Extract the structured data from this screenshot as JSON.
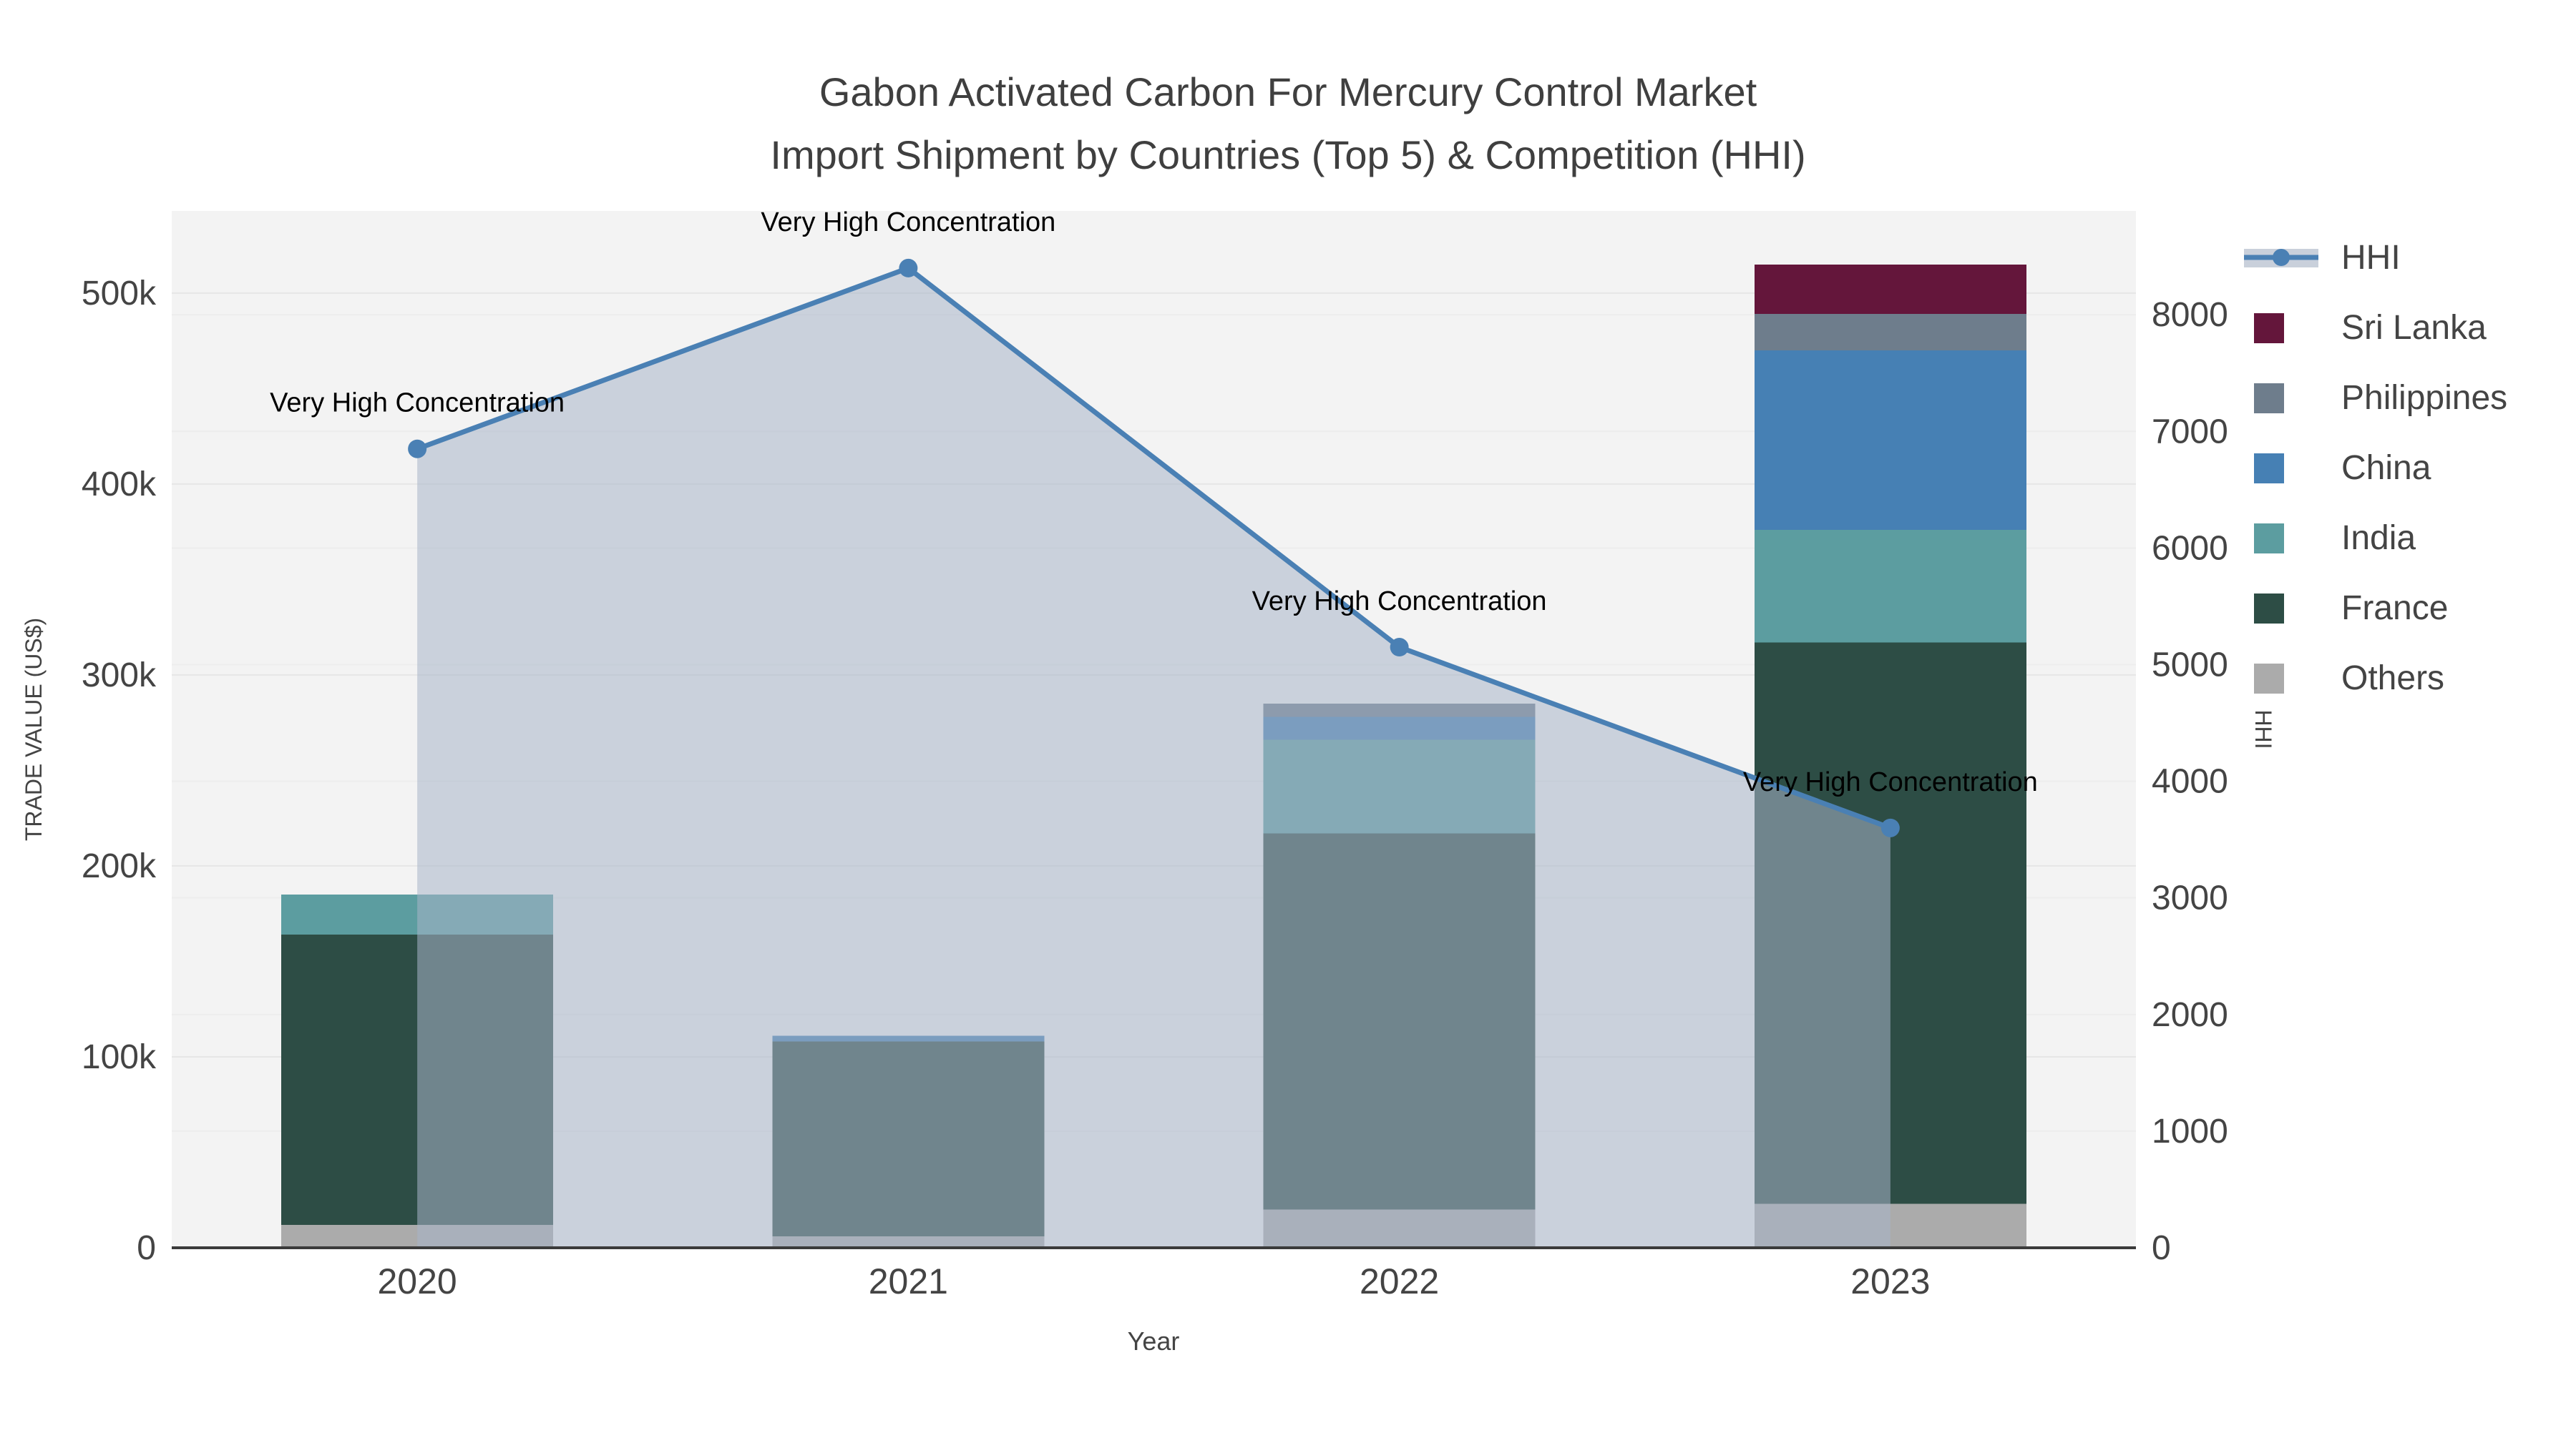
{
  "title": {
    "line1": "Gabon Activated Carbon For Mercury Control Market",
    "line2": "Import Shipment by Countries (Top 5) & Competition (HHI)"
  },
  "axes": {
    "x": {
      "title": "Year",
      "categories": [
        "2020",
        "2021",
        "2022",
        "2023"
      ]
    },
    "y_left": {
      "title": "TRADE VALUE (US$)",
      "tick_labels": [
        "0",
        "100k",
        "200k",
        "300k",
        "400k",
        "500k"
      ],
      "tick_values": [
        0,
        100000,
        200000,
        300000,
        400000,
        500000
      ],
      "max": 543000
    },
    "y_right": {
      "title": "HHI",
      "tick_labels": [
        "0",
        "1000",
        "2000",
        "3000",
        "4000",
        "5000",
        "6000",
        "7000",
        "8000"
      ],
      "tick_values": [
        0,
        1000,
        2000,
        3000,
        4000,
        5000,
        6000,
        7000,
        8000
      ],
      "max": 8890
    }
  },
  "legend": {
    "items": [
      {
        "label": "HHI",
        "type": "line",
        "color": "#4A80B4",
        "band": "#C9D0DB"
      },
      {
        "label": "Sri Lanka",
        "type": "box",
        "color": "#64163B"
      },
      {
        "label": "Philippines",
        "type": "box",
        "color": "#6E7D8C"
      },
      {
        "label": "China",
        "type": "box",
        "color": "#4680B4"
      },
      {
        "label": "India",
        "type": "box",
        "color": "#5C9DA0"
      },
      {
        "label": "France",
        "type": "box",
        "color": "#2D4D45"
      },
      {
        "label": "Others",
        "type": "box",
        "color": "#ABABAB"
      }
    ]
  },
  "annotations": [
    {
      "year": "2020",
      "text": "Very High Concentration"
    },
    {
      "year": "2021",
      "text": "Very High Concentration"
    },
    {
      "year": "2022",
      "text": "Very High Concentration"
    },
    {
      "year": "2023",
      "text": "Very High Concentration"
    }
  ],
  "chart_data": {
    "type": "combo: stacked bar (left axis) + line with area fill (right axis)",
    "categories": [
      "2020",
      "2021",
      "2022",
      "2023"
    ],
    "bar_value_unit": "US$ trade value",
    "bar_stack_order_bottom_to_top": [
      "Others",
      "France",
      "India",
      "China",
      "Philippines",
      "Sri Lanka"
    ],
    "series": [
      {
        "name": "Others",
        "type": "bar",
        "axis": "left",
        "color": "#ABABAB",
        "values": [
          12000,
          6000,
          20000,
          23000
        ]
      },
      {
        "name": "France",
        "type": "bar",
        "axis": "left",
        "color": "#2D4D45",
        "values": [
          152000,
          102000,
          197000,
          294000
        ]
      },
      {
        "name": "India",
        "type": "bar",
        "axis": "left",
        "color": "#5C9DA0",
        "values": [
          21000,
          0,
          49000,
          59000
        ]
      },
      {
        "name": "China",
        "type": "bar",
        "axis": "left",
        "color": "#4680B4",
        "values": [
          0,
          3000,
          12000,
          94000
        ]
      },
      {
        "name": "Philippines",
        "type": "bar",
        "axis": "left",
        "color": "#6E7D8C",
        "values": [
          0,
          0,
          7000,
          19000
        ]
      },
      {
        "name": "Sri Lanka",
        "type": "bar",
        "axis": "left",
        "color": "#64163B",
        "values": [
          0,
          0,
          0,
          26000
        ]
      },
      {
        "name": "HHI",
        "type": "line",
        "axis": "right",
        "color": "#4A80B4",
        "fill": "rgba(168,180,200,0.55)",
        "values": [
          6850,
          8400,
          5150,
          3600
        ]
      }
    ],
    "bar_totals": [
      185000,
      111000,
      285000,
      515000
    ],
    "ylim_left": [
      0,
      543000
    ],
    "ylim_right": [
      0,
      8890
    ],
    "grid": true,
    "legend_position": "right"
  },
  "colors": {
    "plot_background": "#F3F3F3",
    "grid_left": "#E6E6E6",
    "grid_right": "#EDEDED",
    "axis_line": "#3B3B3B",
    "text": "#444444",
    "title_text": "#3F3F3F",
    "annotation_text": "#000000"
  }
}
